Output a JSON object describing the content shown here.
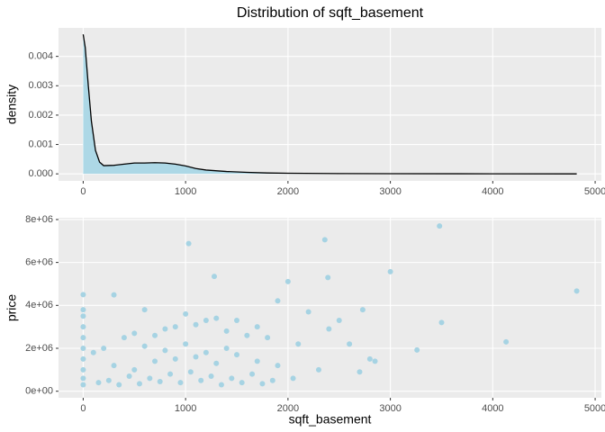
{
  "chart_data": [
    {
      "type": "density",
      "title": "Distribution of sqft_basement",
      "ylabel": "density",
      "x": [
        0,
        20,
        50,
        80,
        120,
        160,
        200,
        300,
        400,
        500,
        600,
        700,
        800,
        900,
        1000,
        1100,
        1200,
        1400,
        1600,
        1800,
        2000,
        2500,
        3000,
        4000,
        4820
      ],
      "values": [
        0.00475,
        0.0043,
        0.003,
        0.0018,
        0.0008,
        0.0004,
        0.00028,
        0.00029,
        0.00033,
        0.00037,
        0.00037,
        0.00038,
        0.00037,
        0.00033,
        0.00027,
        0.00018,
        0.00013,
        8e-05,
        5e-05,
        3e-05,
        2e-05,
        1e-05,
        5e-06,
        2e-06,
        0
      ],
      "color": "#000000",
      "fill": "#add8e6",
      "xlim": [
        -241,
        5061
      ],
      "xticks": [
        0,
        1000,
        2000,
        3000,
        4000,
        5000
      ],
      "ylim": [
        -0.00024,
        0.00497
      ],
      "yticks": [
        {
          "value": 0,
          "label": "0.000"
        },
        {
          "value": 0.001,
          "label": "0.001"
        },
        {
          "value": 0.002,
          "label": "0.002"
        },
        {
          "value": 0.003,
          "label": "0.003"
        },
        {
          "value": 0.004,
          "label": "0.004"
        }
      ],
      "grid": true
    },
    {
      "type": "scatter",
      "xlabel": "sqft_basement",
      "ylabel": "price",
      "color": "#a6d3e3",
      "x": [
        1030,
        2360,
        3480,
        4820,
        3000,
        1280,
        2390,
        2000,
        1900,
        0,
        300,
        4130,
        3500,
        3260,
        2730,
        2500,
        2850,
        2800,
        2700,
        0,
        0,
        0,
        0,
        0,
        0,
        0,
        0,
        0,
        600,
        1000,
        1300,
        1500,
        1700,
        2200,
        2400,
        2600,
        100,
        200,
        400,
        500,
        700,
        800,
        900,
        1100,
        1200,
        1400,
        1600,
        1800,
        2100,
        300,
        500,
        700,
        900,
        1100,
        1300,
        1500,
        1700,
        1900,
        2300,
        250,
        450,
        650,
        850,
        1050,
        1250,
        1450,
        1650,
        1850,
        150,
        350,
        550,
        750,
        950,
        1150,
        1350,
        1550,
        1750,
        2050,
        1000,
        1400,
        800,
        1200,
        600
      ],
      "values": [
        6880000,
        7060000,
        7700000,
        4670000,
        5570000,
        5350000,
        5300000,
        5110000,
        4210000,
        4500000,
        4490000,
        2300000,
        3200000,
        1920000,
        3800000,
        3300000,
        1400000,
        1500000,
        900000,
        3800000,
        3500000,
        3000000,
        2500000,
        2000000,
        1500000,
        1000000,
        600000,
        300000,
        3800000,
        3600000,
        3400000,
        3300000,
        3000000,
        3700000,
        2900000,
        2200000,
        1800000,
        2000000,
        2500000,
        2700000,
        2600000,
        2900000,
        3000000,
        3100000,
        3300000,
        2800000,
        2600000,
        2500000,
        2200000,
        1200000,
        1000000,
        1400000,
        1500000,
        1600000,
        1300000,
        1700000,
        1400000,
        1200000,
        1000000,
        500000,
        700000,
        600000,
        800000,
        900000,
        700000,
        600000,
        800000,
        500000,
        400000,
        300000,
        350000,
        450000,
        400000,
        500000,
        300000,
        400000,
        350000,
        600000,
        2200000,
        2000000,
        1900000,
        1800000,
        2100000
      ],
      "xlim": [
        -241,
        5061
      ],
      "xticks": [
        0,
        1000,
        2000,
        3000,
        4000,
        5000
      ],
      "ylim": [
        -306000,
        8081000
      ],
      "yticks": [
        {
          "value": 0,
          "label": "0e+00"
        },
        {
          "value": 2000000,
          "label": "2e+06"
        },
        {
          "value": 4000000,
          "label": "4e+06"
        },
        {
          "value": 6000000,
          "label": "6e+06"
        },
        {
          "value": 8000000,
          "label": "8e+06"
        }
      ],
      "grid": true
    }
  ]
}
